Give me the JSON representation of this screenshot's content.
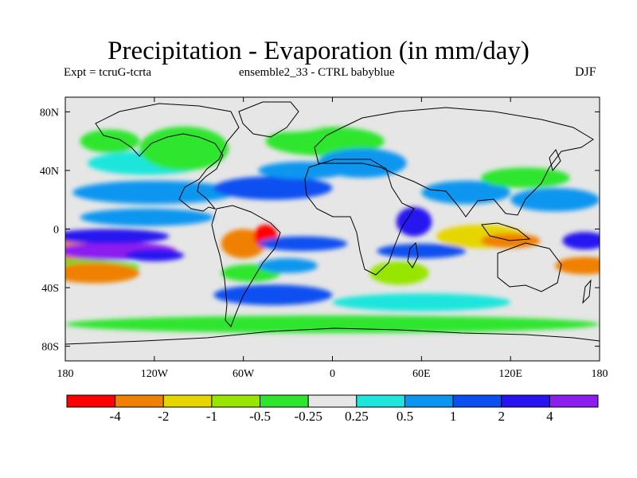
{
  "title": "Precipitation - Evaporation (in mm/day)",
  "subtitle_left": "Expt = tcruG-tcrta",
  "subtitle_center": "ensemble2_33 - CTRL babyblue",
  "season": "DJF",
  "map": {
    "projection": "cylindrical equidistant",
    "lon_range": [
      -180,
      180
    ],
    "lat_range": [
      -90,
      90
    ],
    "lat_ticks": [
      {
        "value": 80,
        "label": "80N"
      },
      {
        "value": 40,
        "label": "40N"
      },
      {
        "value": 0,
        "label": "0"
      },
      {
        "value": -40,
        "label": "40S"
      },
      {
        "value": -80,
        "label": "80S"
      }
    ],
    "lon_ticks": [
      {
        "value": -180,
        "label": "180"
      },
      {
        "value": -120,
        "label": "120W"
      },
      {
        "value": -60,
        "label": "60W"
      },
      {
        "value": 0,
        "label": "0"
      },
      {
        "value": 60,
        "label": "60E"
      },
      {
        "value": 120,
        "label": "120E"
      },
      {
        "value": 180,
        "label": "180"
      }
    ],
    "no_data_color": "#e6e6e6"
  },
  "colorbar": {
    "colors": [
      "#ff0000",
      "#f08000",
      "#e6d600",
      "#96e600",
      "#2ee62e",
      "#e6e6e6",
      "#1ee6dc",
      "#0a96f0",
      "#0a50f0",
      "#2814f0",
      "#8c1ef0"
    ],
    "labels": [
      "-4",
      "-2",
      "-1",
      "-0.5",
      "-0.25",
      "0.25",
      "0.5",
      "1",
      "2",
      "4"
    ]
  },
  "regions": [
    {
      "lon": -175,
      "lat": -15,
      "rx": 35,
      "ry": 8,
      "level": 1
    },
    {
      "lon": -170,
      "lat": -26,
      "rx": 40,
      "ry": 5,
      "level": 4
    },
    {
      "lon": -160,
      "lat": -30,
      "rx": 30,
      "ry": 7,
      "level": 1
    },
    {
      "lon": -145,
      "lat": -15,
      "rx": 40,
      "ry": 6,
      "level": 10
    },
    {
      "lon": -120,
      "lat": -18,
      "rx": 20,
      "ry": 4,
      "level": 9
    },
    {
      "lon": -150,
      "lat": -5,
      "rx": 40,
      "ry": 5,
      "level": 9
    },
    {
      "lon": -125,
      "lat": 8,
      "rx": 45,
      "ry": 6,
      "level": 7
    },
    {
      "lon": -120,
      "lat": 25,
      "rx": 55,
      "ry": 8,
      "level": 7
    },
    {
      "lon": -125,
      "lat": 45,
      "rx": 40,
      "ry": 8,
      "level": 6
    },
    {
      "lon": -150,
      "lat": 60,
      "rx": 20,
      "ry": 8,
      "level": 4
    },
    {
      "lon": -100,
      "lat": 55,
      "rx": 30,
      "ry": 15,
      "level": 4
    },
    {
      "lon": -60,
      "lat": -10,
      "rx": 15,
      "ry": 10,
      "level": 1
    },
    {
      "lon": -45,
      "lat": -5,
      "rx": 8,
      "ry": 8,
      "level": 0
    },
    {
      "lon": -55,
      "lat": -30,
      "rx": 20,
      "ry": 6,
      "level": 4
    },
    {
      "lon": -40,
      "lat": -45,
      "rx": 40,
      "ry": 7,
      "level": 8
    },
    {
      "lon": -30,
      "lat": -25,
      "rx": 20,
      "ry": 5,
      "level": 7
    },
    {
      "lon": -20,
      "lat": -10,
      "rx": 30,
      "ry": 5,
      "level": 8
    },
    {
      "lon": -40,
      "lat": 28,
      "rx": 40,
      "ry": 8,
      "level": 8
    },
    {
      "lon": -20,
      "lat": 40,
      "rx": 30,
      "ry": 6,
      "level": 7
    },
    {
      "lon": -5,
      "lat": 60,
      "rx": 40,
      "ry": 10,
      "level": 4
    },
    {
      "lon": -30,
      "lat": 75,
      "rx": 30,
      "ry": 8,
      "level": 5
    },
    {
      "lon": 20,
      "lat": 45,
      "rx": 30,
      "ry": 10,
      "level": 7
    },
    {
      "lon": 55,
      "lat": 5,
      "rx": 12,
      "ry": 10,
      "level": 9
    },
    {
      "lon": 60,
      "lat": -15,
      "rx": 30,
      "ry": 5,
      "level": 8
    },
    {
      "lon": 45,
      "lat": -30,
      "rx": 20,
      "ry": 8,
      "level": 3
    },
    {
      "lon": 100,
      "lat": -5,
      "rx": 30,
      "ry": 8,
      "level": 2
    },
    {
      "lon": 120,
      "lat": -8,
      "rx": 20,
      "ry": 5,
      "level": 1
    },
    {
      "lon": 90,
      "lat": 25,
      "rx": 30,
      "ry": 8,
      "level": 7
    },
    {
      "lon": 130,
      "lat": 35,
      "rx": 30,
      "ry": 7,
      "level": 4
    },
    {
      "lon": 150,
      "lat": 20,
      "rx": 30,
      "ry": 8,
      "level": 7
    },
    {
      "lon": 170,
      "lat": -8,
      "rx": 15,
      "ry": 6,
      "level": 9
    },
    {
      "lon": 170,
      "lat": -25,
      "rx": 20,
      "ry": 6,
      "level": 1
    },
    {
      "lon": 0,
      "lat": -65,
      "rx": 180,
      "ry": 6,
      "level": 4
    },
    {
      "lon": 60,
      "lat": -50,
      "rx": 60,
      "ry": 6,
      "level": 6
    }
  ]
}
